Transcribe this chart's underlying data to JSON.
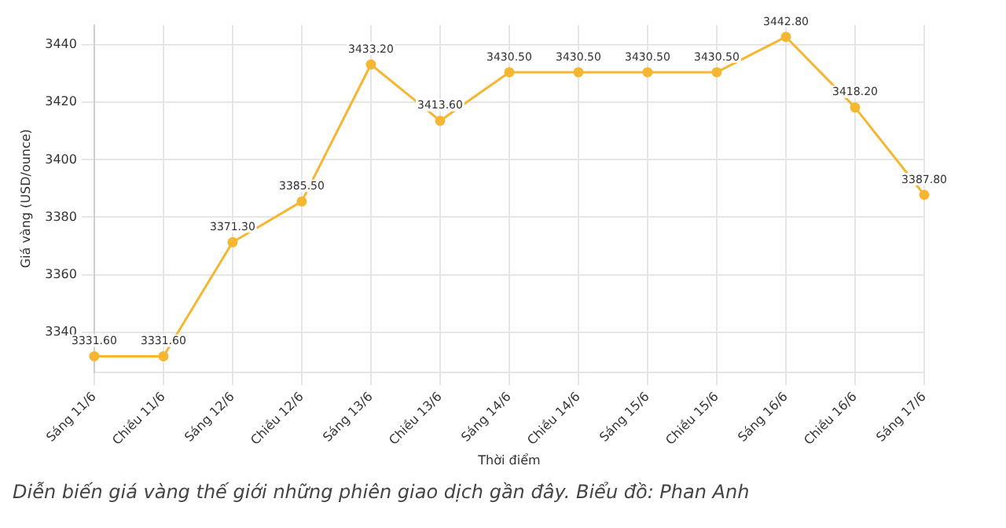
{
  "chart_data": {
    "type": "line",
    "xlabel": "Thời điểm",
    "ylabel": "Giá vàng (USD/ounce)",
    "categories": [
      "Sáng 11/6",
      "Chiều 11/6",
      "Sáng 12/6",
      "Chiều 12/6",
      "Sáng 13/6",
      "Chiều 13/6",
      "Sáng 14/6",
      "Chiều 14/6",
      "Sáng 15/6",
      "Chiều 15/6",
      "Sáng 16/6",
      "Chiều 16/6",
      "Sáng 17/6"
    ],
    "series": [
      {
        "color": "#f5b731",
        "values": [
          3331.6,
          3331.6,
          3371.3,
          3385.5,
          3433.2,
          3413.6,
          3430.5,
          3430.5,
          3430.5,
          3430.5,
          3442.8,
          3418.2,
          3387.8
        ],
        "value_labels": [
          "3331.60",
          "3331.60",
          "3371.30",
          "3385.50",
          "3433.20",
          "3413.60",
          "3430.50",
          "3430.50",
          "3430.50",
          "3430.50",
          "3442.80",
          "3418.20",
          "3387.80"
        ]
      }
    ],
    "ylim": [
      3326,
      3447
    ],
    "yticks": [
      3340,
      3360,
      3380,
      3400,
      3420,
      3440
    ],
    "grid": true,
    "marker": "circle",
    "line_style": "solid",
    "legend": false,
    "annotations": [
      "Diễn biến giá vàng thế giới những phiên giao dịch gần đây. Biểu đồ: Phan Anh"
    ]
  }
}
